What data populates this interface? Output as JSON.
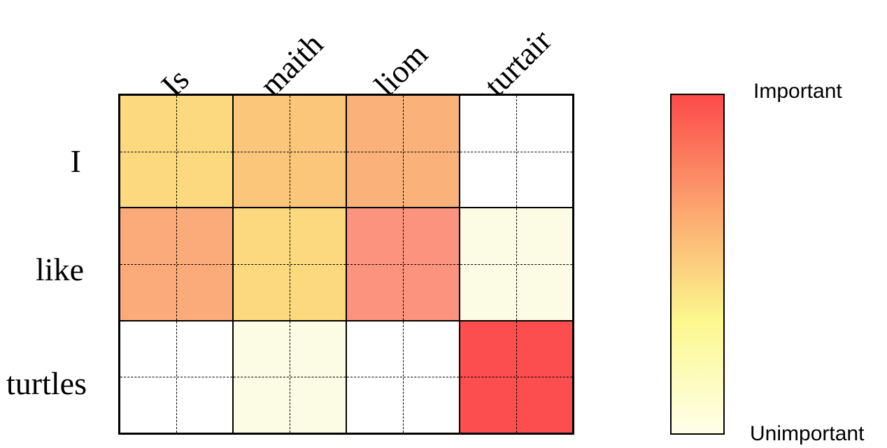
{
  "columns": [
    "Is",
    "maith",
    "liom",
    "turtair"
  ],
  "rows": [
    "I",
    "like",
    "turtles"
  ],
  "chart_data": {
    "type": "heatmap",
    "x_categories": [
      "Is",
      "maith",
      "liom",
      "turtair"
    ],
    "y_categories": [
      "I",
      "like",
      "turtles"
    ],
    "values": [
      [
        0.45,
        0.6,
        0.65,
        0.0
      ],
      [
        0.65,
        0.45,
        0.78,
        0.08
      ],
      [
        0.0,
        0.08,
        0.0,
        1.0
      ]
    ],
    "cell_colors": [
      [
        "#fcd97f",
        "#fbc67a",
        "#fbb27a",
        "#ffffff"
      ],
      [
        "#fbaa7a",
        "#fcd97f",
        "#fc937e",
        "#fbfce3"
      ],
      [
        "#ffffff",
        "#fbfce3",
        "#ffffff",
        "#fc4d4f"
      ]
    ],
    "colorbar": {
      "label_high": "Important",
      "label_low": "Unimportant",
      "colors": [
        "#fc4a4a",
        "#fca46f",
        "#fcf88e",
        "#fefee9"
      ]
    }
  }
}
